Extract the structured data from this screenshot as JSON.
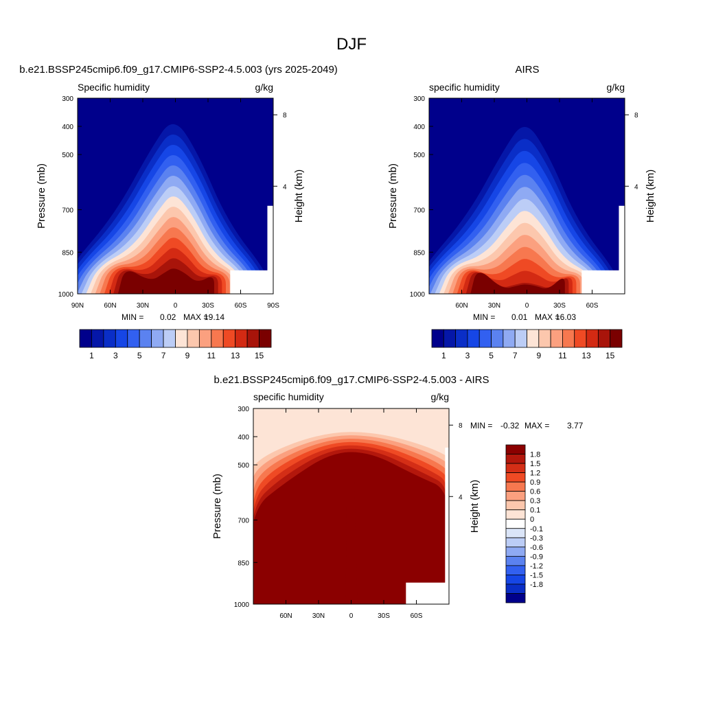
{
  "chart_data": {
    "type": "contour-cross-section",
    "title": "DJF",
    "panels": [
      {
        "title": "b.e21.BSSP245cmip6.f09_g17.CMIP6-SSP2-4.5.003 (yrs 2025-2049)",
        "left_label": "Specific humidity",
        "right_label": "g/kg",
        "ylabel": "Pressure (mb)",
        "y2label": "Height (km)",
        "y_ticks": [
          "300",
          "400",
          "500",
          "700",
          "850",
          "1000"
        ],
        "y2_ticks": [
          "8",
          "4"
        ],
        "x_ticks": [
          "90N",
          "60N",
          "30N",
          "0",
          "30S",
          "60S",
          "90S"
        ],
        "x_range": [
          90,
          -90
        ],
        "y_range_mb": [
          1000,
          300
        ],
        "min_label": "MIN =",
        "min": "0.02",
        "max_label": "MAX =",
        "max": "19.14",
        "colorbar_levels": [
          "1",
          "3",
          "5",
          "7",
          "9",
          "11",
          "13",
          "15"
        ]
      },
      {
        "title": "AIRS",
        "left_label": "specific humidity",
        "right_label": "g/kg",
        "ylabel": "Pressure (mb)",
        "y2label": "Height (km)",
        "y_ticks": [
          "300",
          "400",
          "500",
          "700",
          "850",
          "1000"
        ],
        "y2_ticks": [
          "8",
          "4"
        ],
        "x_ticks": [
          "60N",
          "30N",
          "0",
          "30S",
          "60S"
        ],
        "x_range": [
          90,
          -90
        ],
        "y_range_mb": [
          1000,
          300
        ],
        "min_label": "MIN =",
        "min": "0.01",
        "max_label": "MAX =",
        "max": "16.03",
        "colorbar_levels": [
          "1",
          "3",
          "5",
          "7",
          "9",
          "11",
          "13",
          "15"
        ]
      },
      {
        "title": "b.e21.BSSP245cmip6.f09_g17.CMIP6-SSP2-4.5.003 - AIRS",
        "left_label": "specific humidity",
        "right_label": "g/kg",
        "ylabel": "Pressure (mb)",
        "y2label": "Height (km)",
        "y_ticks": [
          "300",
          "400",
          "500",
          "700",
          "850",
          "1000"
        ],
        "y2_ticks": [
          "8",
          "4"
        ],
        "x_ticks": [
          "60N",
          "30N",
          "0",
          "30S",
          "60S"
        ],
        "x_range": [
          90,
          -90
        ],
        "y_range_mb": [
          1000,
          300
        ],
        "min_label": "MIN =",
        "min": "-0.32",
        "max_label": "MAX =",
        "max": "3.77",
        "colorbar_levels": [
          "1.8",
          "1.5",
          "1.2",
          "0.9",
          "0.6",
          "0.3",
          "0.1",
          "0",
          "-0.1",
          "-0.3",
          "-0.6",
          "-0.9",
          "-1.2",
          "-1.5",
          "-1.8"
        ]
      }
    ],
    "humidity_palette": [
      "#00008b",
      "#0517a8",
      "#0a2ec7",
      "#1646e6",
      "#3260f0",
      "#5b82f0",
      "#8faaf3",
      "#bccdf6",
      "#fde4d6",
      "#fcc7ad",
      "#fba07f",
      "#f7784f",
      "#ef4a24",
      "#d32a13",
      "#a8140a",
      "#7a0000"
    ],
    "diff_palette": [
      "#8b0000",
      "#b3170c",
      "#d42e16",
      "#ef4a24",
      "#f7784f",
      "#fba07f",
      "#fcc7ad",
      "#fde4d6",
      "#ffffff",
      "#dbe5f8",
      "#bccdf6",
      "#8faaf3",
      "#5b82f0",
      "#3260f0",
      "#1646e6",
      "#0a2ec7",
      "#00008b"
    ]
  }
}
